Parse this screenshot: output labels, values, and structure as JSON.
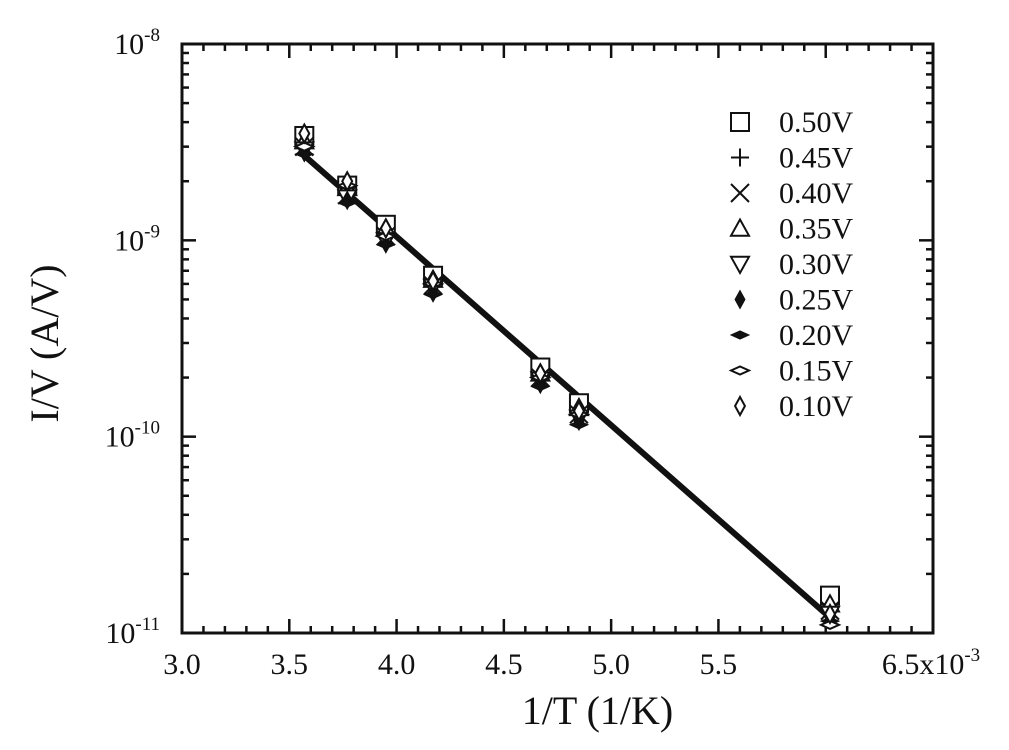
{
  "chart_data": {
    "type": "scatter",
    "xlabel": "1/T (1/K)",
    "ylabel": "I/V (A/V)",
    "xlim": [
      3.0,
      6.5
    ],
    "ylim": [
      1e-11,
      1e-08
    ],
    "yscale": "log",
    "x_multiplier_label": "x10",
    "x_multiplier_exponent": "-3",
    "x_ticks": [
      "3.0",
      "3.5",
      "4.0",
      "4.5",
      "5.0",
      "5.5",
      "6.5"
    ],
    "y_ticks": [
      {
        "base": "10",
        "exp": "-8"
      },
      {
        "base": "10",
        "exp": "-9"
      },
      {
        "base": "10",
        "exp": "-10"
      },
      {
        "base": "10",
        "exp": "-11"
      }
    ],
    "legend_position": "top-right",
    "fit_line": {
      "x": [
        3.57,
        6.02
      ],
      "y": [
        2.7e-09,
        1.2e-11
      ]
    },
    "series": [
      {
        "name": "0.50V",
        "marker": "square",
        "x": [
          3.57,
          3.77,
          3.95,
          4.17,
          4.67,
          4.85,
          6.02
        ],
        "y": [
          3.4e-09,
          1.9e-09,
          1.2e-09,
          6.6e-10,
          2.25e-10,
          1.48e-10,
          1.55e-11
        ]
      },
      {
        "name": "0.45V",
        "marker": "plus",
        "x": [
          3.57,
          3.77,
          3.95,
          4.17,
          4.67,
          4.85,
          6.02
        ],
        "y": [
          3.1e-09,
          1.75e-09,
          1.1e-09,
          6.2e-10,
          2.05e-10,
          1.35e-10,
          1.4e-11
        ]
      },
      {
        "name": "0.40V",
        "marker": "x",
        "x": [
          3.57,
          3.77,
          3.95,
          4.17,
          4.67,
          4.85,
          6.02
        ],
        "y": [
          3e-09,
          1.7e-09,
          1.05e-09,
          5.9e-10,
          2e-10,
          1.3e-10,
          1.3e-11
        ]
      },
      {
        "name": "0.35V",
        "marker": "triangle-up",
        "x": [
          3.57,
          3.77,
          3.95,
          4.17,
          4.67,
          4.85,
          6.02
        ],
        "y": [
          3.2e-09,
          1.85e-09,
          1.15e-09,
          6.3e-10,
          2.1e-10,
          1.4e-10,
          1.4e-11
        ]
      },
      {
        "name": "0.30V",
        "marker": "triangle-down",
        "x": [
          3.57,
          3.77,
          3.95,
          4.17,
          4.67,
          4.85,
          6.02
        ],
        "y": [
          2.9e-09,
          1.65e-09,
          1e-09,
          5.8e-10,
          1.95e-10,
          1.25e-10,
          1.25e-11
        ]
      },
      {
        "name": "0.25V",
        "marker": "diamond-filled",
        "x": [
          3.57,
          3.77,
          3.95,
          4.17,
          4.67,
          4.85,
          6.02
        ],
        "y": [
          2.8e-09,
          1.6e-09,
          9.6e-10,
          5.4e-10,
          1.85e-10,
          1.2e-10,
          1.2e-11
        ]
      },
      {
        "name": "0.20V",
        "marker": "lens-filled",
        "x": [
          3.57,
          3.77,
          3.95,
          4.17,
          4.67,
          4.85,
          6.02
        ],
        "y": [
          2.75e-09,
          1.55e-09,
          9.5e-10,
          5.3e-10,
          1.8e-10,
          1.15e-10,
          1.15e-11
        ]
      },
      {
        "name": "0.15V",
        "marker": "lens-open",
        "x": [
          3.57,
          3.77,
          3.95,
          4.17,
          4.67,
          4.85,
          6.02
        ],
        "y": [
          3e-09,
          1.9e-09,
          1.05e-09,
          6e-10,
          2e-10,
          1.3e-10,
          1.1e-11
        ]
      },
      {
        "name": "0.10V",
        "marker": "diamond-open",
        "x": [
          3.57,
          3.77,
          3.95,
          4.17,
          4.67,
          4.85,
          6.02
        ],
        "y": [
          3.5e-09,
          2e-09,
          1.15e-09,
          6.2e-10,
          2.1e-10,
          1.35e-10,
          1.25e-11
        ]
      }
    ]
  }
}
